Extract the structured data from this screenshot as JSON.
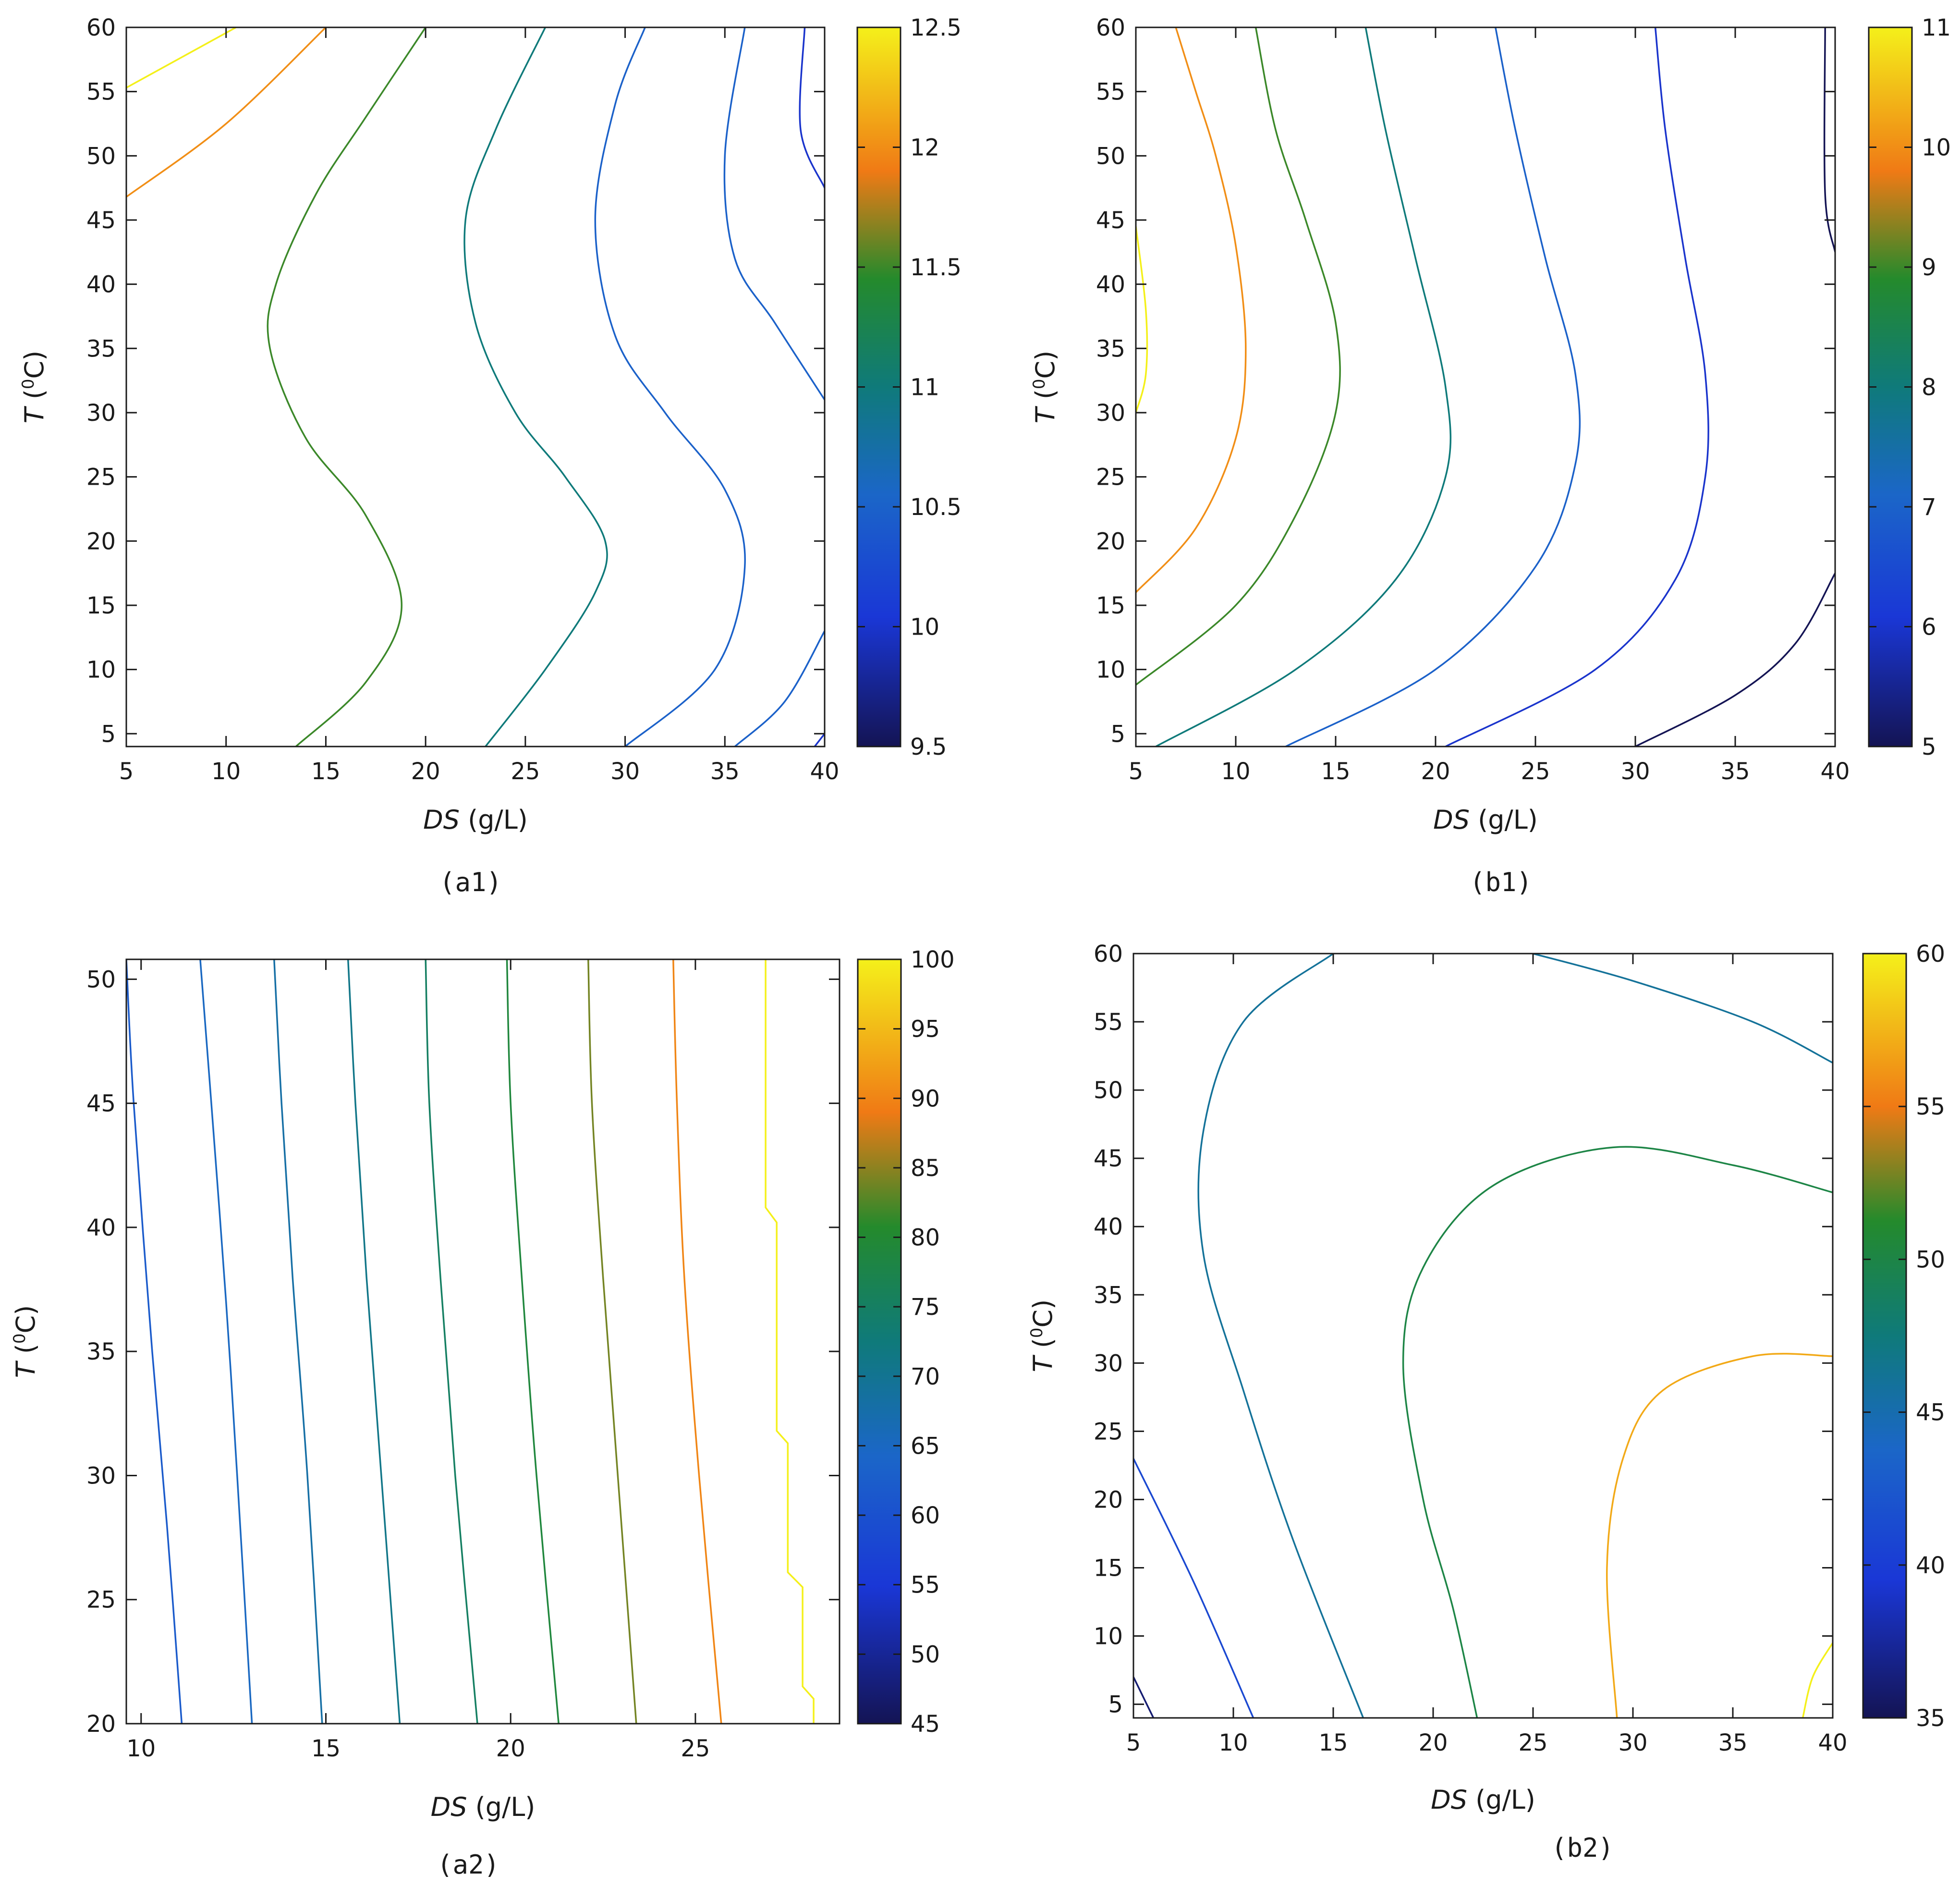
{
  "chart_data": [
    {
      "id": "a1",
      "type": "contour",
      "caption": "(a1)",
      "xlabel_italic": "DS",
      "xlabel_unit": "(g/L)",
      "ylabel_italic": "T",
      "ylabel_unit": "(0C)",
      "ylabel_unit_parts": [
        "(",
        "0",
        "C)"
      ],
      "xlim": [
        5,
        40
      ],
      "ylim": [
        4,
        60
      ],
      "xticks": [
        5,
        10,
        15,
        20,
        25,
        30,
        35,
        40
      ],
      "yticks": [
        5,
        10,
        15,
        20,
        25,
        30,
        35,
        40,
        45,
        50,
        55,
        60
      ],
      "colorbar": {
        "min": 9.5,
        "max": 12.5,
        "ticks": [
          9.5,
          10,
          10.5,
          11,
          11.5,
          12,
          12.5
        ]
      },
      "contours": [
        {
          "level": 12.5,
          "points": [
            [
              5,
              55.3
            ],
            [
              10.5,
              60
            ]
          ]
        },
        {
          "level": 12,
          "points": [
            [
              5,
              46.8
            ],
            [
              10,
              52.5
            ],
            [
              15,
              60
            ]
          ]
        },
        {
          "level": 11.5,
          "points": [
            [
              13.5,
              4
            ],
            [
              17,
              9
            ],
            [
              18.8,
              15
            ],
            [
              17,
              22
            ],
            [
              14,
              28
            ],
            [
              12.2,
              35
            ],
            [
              12.5,
              40
            ],
            [
              14.5,
              47
            ],
            [
              17,
              53
            ],
            [
              20,
              60
            ]
          ]
        },
        {
          "level": 11,
          "points": [
            [
              23,
              4
            ],
            [
              26,
              10
            ],
            [
              28.5,
              16
            ],
            [
              29,
              20
            ],
            [
              27,
              25
            ],
            [
              24.5,
              30
            ],
            [
              22.5,
              37
            ],
            [
              22,
              45
            ],
            [
              23.5,
              52
            ],
            [
              26,
              60
            ]
          ]
        },
        {
          "level": 10.5,
          "points": [
            [
              30,
              4
            ],
            [
              34.5,
              10
            ],
            [
              36,
              18
            ],
            [
              35,
              24
            ],
            [
              32,
              30
            ],
            [
              29.5,
              36
            ],
            [
              28.5,
              45
            ],
            [
              29.5,
              54
            ],
            [
              31,
              60
            ]
          ]
        },
        {
          "level": 10.5,
          "points": [
            [
              35.5,
              4
            ],
            [
              38,
              7.5
            ],
            [
              40,
              13
            ]
          ]
        },
        {
          "level": 10.5,
          "points": [
            [
              40,
              31
            ],
            [
              37.5,
              37
            ],
            [
              35.5,
              42
            ],
            [
              35,
              50
            ],
            [
              36,
              60
            ]
          ]
        },
        {
          "level": 10,
          "points": [
            [
              39.5,
              4
            ],
            [
              40,
              5
            ]
          ]
        },
        {
          "level": 10,
          "points": [
            [
              40,
              47.5
            ],
            [
              38.8,
              52
            ],
            [
              39,
              60
            ]
          ]
        }
      ]
    },
    {
      "id": "b1",
      "type": "contour",
      "caption": "(b1)",
      "xlabel_italic": "DS",
      "xlabel_unit": "(g/L)",
      "ylabel_italic": "T",
      "ylabel_unit": "(0C)",
      "ylabel_unit_parts": [
        "(",
        "0",
        "C)"
      ],
      "xlim": [
        5,
        40
      ],
      "ylim": [
        4,
        60
      ],
      "xticks": [
        5,
        10,
        15,
        20,
        25,
        30,
        35,
        40
      ],
      "yticks": [
        5,
        10,
        15,
        20,
        25,
        30,
        35,
        40,
        45,
        50,
        55,
        60
      ],
      "colorbar": {
        "min": 5,
        "max": 11,
        "ticks": [
          5,
          6,
          7,
          8,
          9,
          10,
          11
        ]
      },
      "contours": [
        {
          "level": 11,
          "points": [
            [
              5,
              30
            ],
            [
              5.5,
              33
            ],
            [
              5.5,
              38
            ],
            [
              5,
              44.5
            ]
          ]
        },
        {
          "level": 10,
          "points": [
            [
              5,
              16
            ],
            [
              8,
              21
            ],
            [
              10,
              28
            ],
            [
              10.5,
              35
            ],
            [
              10,
              43
            ],
            [
              9,
              50
            ],
            [
              8,
              55
            ],
            [
              7,
              60
            ]
          ]
        },
        {
          "level": 9,
          "points": [
            [
              5,
              8.8
            ],
            [
              10,
              15
            ],
            [
              13,
              22
            ],
            [
              15,
              30
            ],
            [
              15,
              37
            ],
            [
              13.5,
              45
            ],
            [
              12,
              52
            ],
            [
              11,
              60
            ]
          ]
        },
        {
          "level": 8,
          "points": [
            [
              6,
              4
            ],
            [
              13,
              10
            ],
            [
              18,
              17
            ],
            [
              20.5,
              25
            ],
            [
              20.5,
              32
            ],
            [
              19,
              42
            ],
            [
              17.5,
              52
            ],
            [
              16.5,
              60
            ]
          ]
        },
        {
          "level": 7,
          "points": [
            [
              12.5,
              4
            ],
            [
              20,
              10
            ],
            [
              25,
              18
            ],
            [
              27,
              26
            ],
            [
              27,
              33
            ],
            [
              25.5,
              42
            ],
            [
              24,
              52
            ],
            [
              23,
              60
            ]
          ]
        },
        {
          "level": 6,
          "points": [
            [
              20.5,
              4
            ],
            [
              28,
              10
            ],
            [
              32,
              17
            ],
            [
              33.5,
              25
            ],
            [
              33.5,
              33
            ],
            [
              32.5,
              42
            ],
            [
              31.5,
              52
            ],
            [
              31,
              60
            ]
          ]
        },
        {
          "level": 5,
          "points": [
            [
              30,
              4
            ],
            [
              35,
              8
            ],
            [
              38,
              12
            ],
            [
              40,
              17.5
            ]
          ]
        },
        {
          "level": 5,
          "points": [
            [
              40,
              42.5
            ],
            [
              39.5,
              47
            ],
            [
              39.5,
              60
            ]
          ]
        }
      ]
    },
    {
      "id": "a2",
      "type": "contour",
      "caption": "(a2)",
      "xlabel_italic": "DS",
      "xlabel_unit": "(g/L)",
      "ylabel_italic": "T",
      "ylabel_unit": "(0C)",
      "ylabel_unit_parts": [
        "(",
        "0",
        "C)"
      ],
      "xlim": [
        9.6,
        28.9
      ],
      "ylim": [
        20,
        50.8
      ],
      "xticks": [
        10,
        15,
        20,
        25
      ],
      "yticks": [
        20,
        25,
        30,
        35,
        40,
        45,
        50
      ],
      "colorbar": {
        "min": 45,
        "max": 100,
        "ticks": [
          45,
          50,
          55,
          60,
          65,
          70,
          75,
          80,
          85,
          90,
          95,
          100
        ]
      },
      "contours": [
        {
          "level": 62,
          "points": [
            [
              9.6,
              50.8
            ],
            [
              9.8,
              45
            ],
            [
              10.3,
              35
            ],
            [
              10.7,
              28
            ],
            [
              11.1,
              20
            ]
          ]
        },
        {
          "level": 65,
          "points": [
            [
              11.6,
              50.8
            ],
            [
              11.9,
              45
            ],
            [
              12.3,
              37
            ],
            [
              12.6,
              30
            ],
            [
              13.0,
              20
            ]
          ]
        },
        {
          "level": 68,
          "points": [
            [
              13.6,
              50.8
            ],
            [
              13.8,
              45
            ],
            [
              14.1,
              38
            ],
            [
              14.5,
              30
            ],
            [
              14.9,
              20
            ]
          ]
        },
        {
          "level": 71,
          "points": [
            [
              15.6,
              50.8
            ],
            [
              15.8,
              45
            ],
            [
              16.1,
              38
            ],
            [
              16.5,
              30
            ],
            [
              17.0,
              20
            ]
          ]
        },
        {
          "level": 75,
          "points": [
            [
              17.7,
              50.8
            ],
            [
              17.8,
              45
            ],
            [
              18.1,
              38
            ],
            [
              18.5,
              30
            ],
            [
              19.1,
              20
            ]
          ]
        },
        {
          "level": 79,
          "points": [
            [
              19.9,
              50.8
            ],
            [
              20.0,
              45
            ],
            [
              20.3,
              38
            ],
            [
              20.7,
              30
            ],
            [
              21.3,
              20
            ]
          ]
        },
        {
          "level": 84,
          "points": [
            [
              22.1,
              50.8
            ],
            [
              22.2,
              45
            ],
            [
              22.5,
              38
            ],
            [
              22.9,
              30
            ],
            [
              23.4,
              20
            ]
          ]
        },
        {
          "level": 90,
          "points": [
            [
              24.4,
              50.8
            ],
            [
              24.5,
              45
            ],
            [
              24.7,
              38
            ],
            [
              25.1,
              30
            ],
            [
              25.7,
              20
            ]
          ]
        },
        {
          "level": 100,
          "points": [
            [
              26.9,
              50.8
            ],
            [
              26.9,
              40.8
            ],
            [
              27.2,
              40.2
            ],
            [
              27.2,
              31.8
            ],
            [
              27.5,
              31.3
            ],
            [
              27.5,
              26.1
            ],
            [
              27.9,
              25.5
            ],
            [
              27.9,
              21.5
            ],
            [
              28.2,
              21
            ],
            [
              28.2,
              20
            ]
          ]
        }
      ]
    },
    {
      "id": "b2",
      "type": "contour",
      "caption": "(b2)",
      "xlabel_italic": "DS",
      "xlabel_unit": "(g/L)",
      "ylabel_italic": "T",
      "ylabel_unit": "(0C)",
      "ylabel_unit_parts": [
        "(",
        "0",
        "C)"
      ],
      "xlim": [
        5,
        40
      ],
      "ylim": [
        4,
        60
      ],
      "xticks": [
        5,
        10,
        15,
        20,
        25,
        30,
        35,
        40
      ],
      "yticks": [
        5,
        10,
        15,
        20,
        25,
        30,
        35,
        40,
        45,
        50,
        55,
        60
      ],
      "colorbar": {
        "min": 35,
        "max": 60,
        "ticks": [
          35,
          40,
          45,
          50,
          55,
          60
        ]
      },
      "contours": [
        {
          "level": 36,
          "points": [
            [
              5,
              7
            ],
            [
              6,
              4
            ]
          ]
        },
        {
          "level": 41,
          "points": [
            [
              5,
              23
            ],
            [
              8,
              14
            ],
            [
              11,
              4
            ]
          ]
        },
        {
          "level": 46,
          "points": [
            [
              15,
              60
            ],
            [
              10.5,
              55
            ],
            [
              8.5,
              47
            ],
            [
              8.5,
              38
            ],
            [
              10.5,
              28
            ],
            [
              13,
              17
            ],
            [
              16.5,
              4
            ]
          ]
        },
        {
          "level": 46,
          "points": [
            [
              25,
              60
            ],
            [
              30,
              58
            ],
            [
              36,
              55
            ],
            [
              40,
              52
            ]
          ]
        },
        {
          "level": 50,
          "points": [
            [
              40,
              42.5
            ],
            [
              35,
              44.5
            ],
            [
              29,
              45.8
            ],
            [
              23,
              43
            ],
            [
              19.5,
              37
            ],
            [
              18.5,
              30
            ],
            [
              19.5,
              20
            ],
            [
              21,
              12
            ],
            [
              22.2,
              4
            ]
          ]
        },
        {
          "level": 57,
          "points": [
            [
              40,
              30.5
            ],
            [
              36,
              30.5
            ],
            [
              31.5,
              28
            ],
            [
              29.5,
              23
            ],
            [
              28.7,
              15
            ],
            [
              29.2,
              4
            ]
          ]
        },
        {
          "level": 60,
          "points": [
            [
              40,
              9.5
            ],
            [
              39,
              7
            ],
            [
              38.5,
              4
            ]
          ]
        }
      ]
    }
  ]
}
